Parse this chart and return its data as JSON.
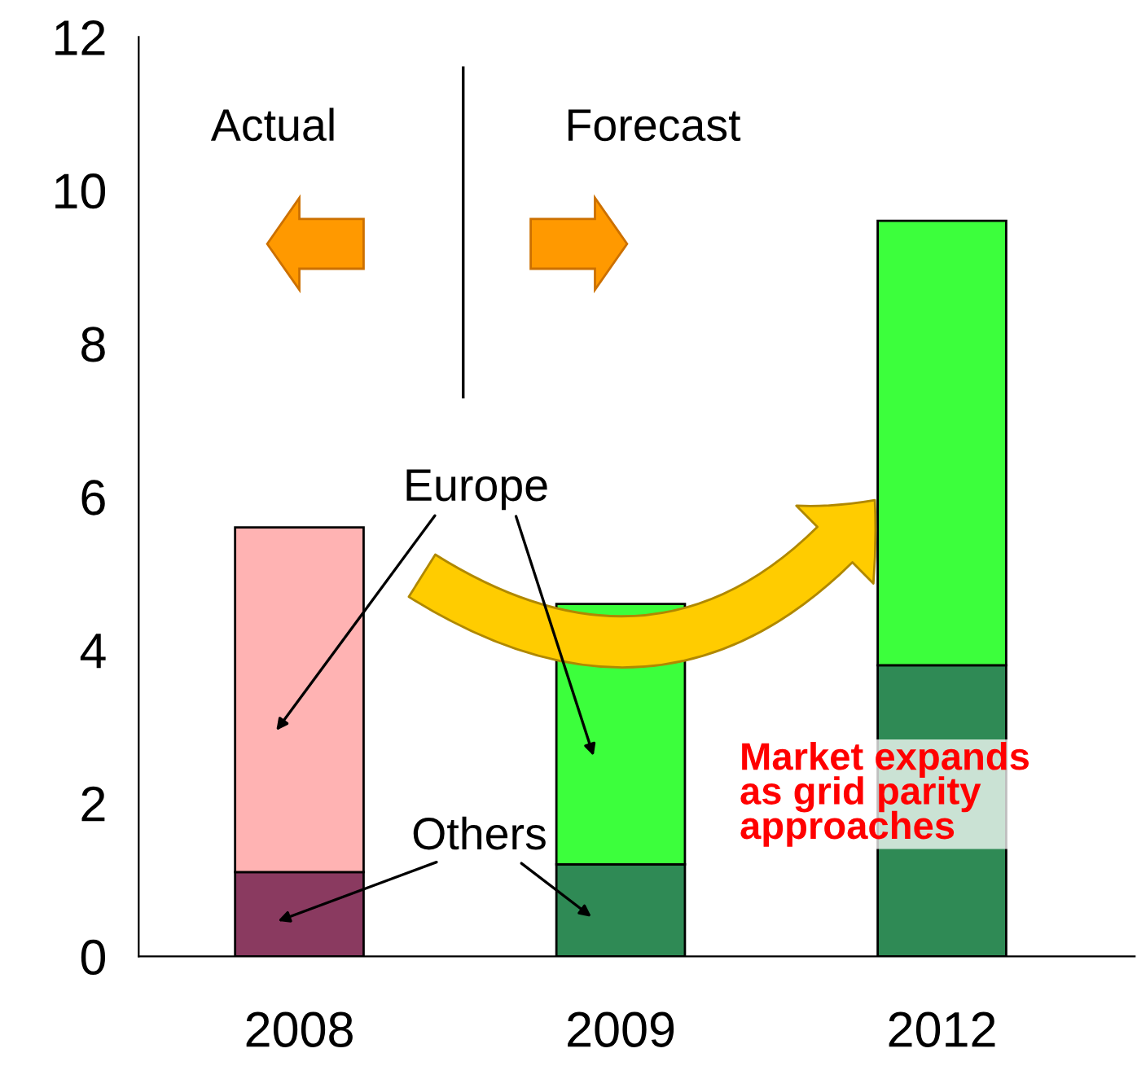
{
  "chart_data": {
    "type": "bar",
    "stacked": true,
    "categories": [
      "2008",
      "2009",
      "2012"
    ],
    "series": [
      {
        "name": "Others",
        "colors": [
          "#8a3a60",
          "#2f8a55",
          "#2f8a55"
        ],
        "values": [
          1.1,
          1.2,
          3.8
        ]
      },
      {
        "name": "Europe",
        "colors": [
          "#ffb3b3",
          "#3cff3c",
          "#3cff3c"
        ],
        "values": [
          4.5,
          3.4,
          5.8
        ]
      }
    ],
    "ylim": [
      0,
      12
    ],
    "yticks": [
      0,
      2,
      4,
      6,
      8,
      10,
      12
    ],
    "grid": false,
    "legend": false,
    "annotations": [
      "Actual",
      "Forecast",
      "Market expands\nas grid parity\napproaches"
    ]
  }
}
